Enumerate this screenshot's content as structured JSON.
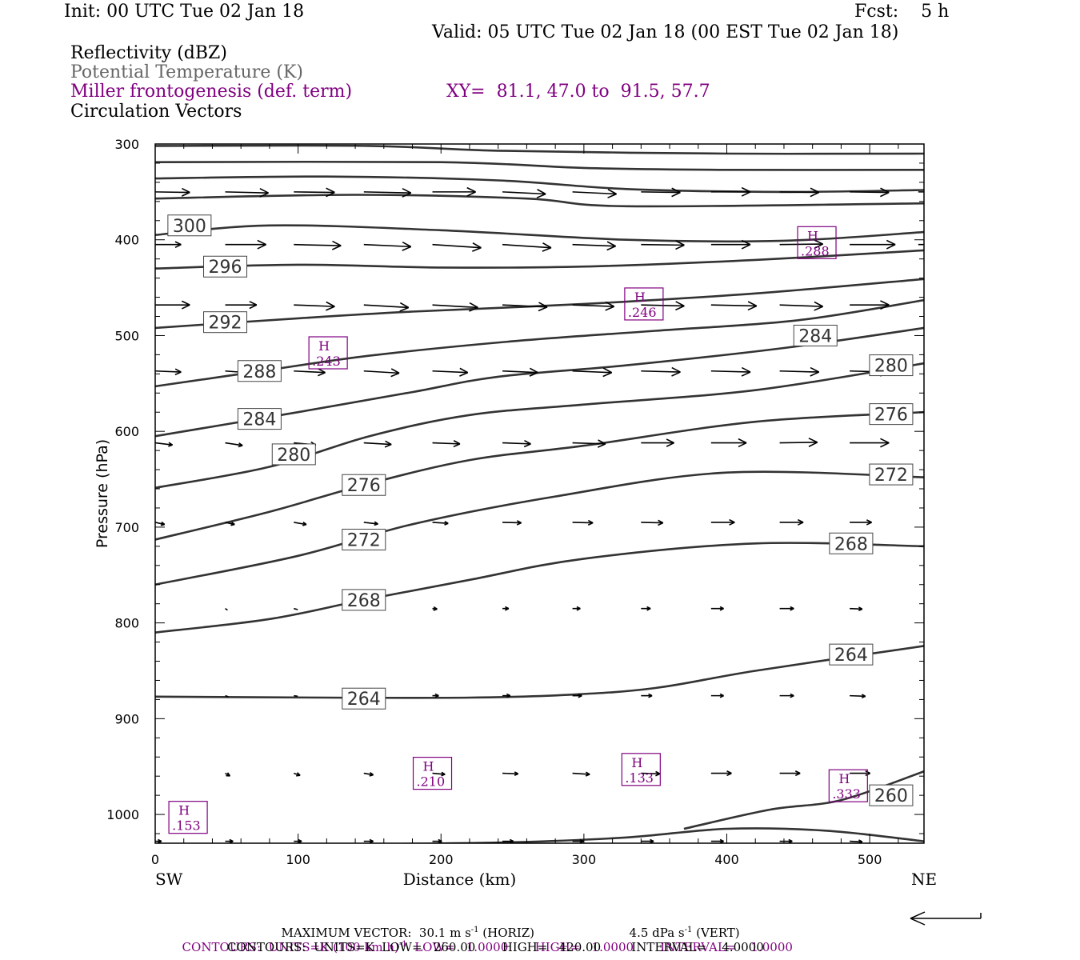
{
  "header": {
    "init": "Init: 00 UTC Tue 02 Jan 18",
    "fcst": "Fcst:    5 h",
    "valid": "Valid: 05 UTC Tue 02 Jan 18 (00 EST Tue 02 Jan 18)"
  },
  "fields": {
    "reflectivity": "Reflectivity (dBZ)",
    "theta": "Potential Temperature (K)",
    "frontogenesis": "Miller frontogenesis (def. term)",
    "xy": "XY=  81.1, 47.0 to  91.5, 57.7",
    "vectors": "Circulation Vectors"
  },
  "colors": {
    "purple": "#800080",
    "gray": "#666666",
    "line": "#333333",
    "axis": "#000000"
  },
  "footer": {
    "max_vector_prefix": "MAXIMUM VECTOR:  30.1 m s",
    "max_vector_exp": "-1",
    "max_vector_mid": " (HORIZ)",
    "max_vector_vert": "4.5 dPa s",
    "max_vector_vert_exp": "-1",
    "max_vector_vert_suffix": " (VERT)",
    "contours1_a": "CONTOURS:  UNITS=K (100 km h)",
    "contours1_exp": "-1",
    "contours1_b": "  LOW=   1.0000       HIGH=   1.0000       INTERVAL=    1.0000",
    "contours2": "CONTOURS:  UNITS=K  LOW=   260.00       HIGH=   420.00        INTERVAL=    4.0000"
  },
  "chart_data": {
    "type": "cross-section",
    "xlabel": "Distance (km)",
    "ylabel": "Pressure (hPa)",
    "xlim": [
      0,
      538
    ],
    "ylim": [
      1030,
      300
    ],
    "x_ticks": [
      0,
      100,
      200,
      300,
      400,
      500
    ],
    "y_ticks": [
      300,
      400,
      500,
      600,
      700,
      800,
      900,
      1000
    ],
    "left_end_label": "SW",
    "right_end_label": "NE",
    "theta_contours": [
      {
        "points": [
          [
            0,
            302
          ],
          [
            150,
            302
          ],
          [
            240,
            307
          ],
          [
            400,
            310
          ],
          [
            538,
            310
          ]
        ]
      },
      {
        "points": [
          [
            0,
            319
          ],
          [
            200,
            319
          ],
          [
            300,
            325
          ],
          [
            400,
            327
          ],
          [
            538,
            327
          ]
        ]
      },
      {
        "points": [
          [
            0,
            336
          ],
          [
            120,
            334
          ],
          [
            240,
            338
          ],
          [
            330,
            347
          ],
          [
            440,
            350
          ],
          [
            538,
            348
          ]
        ]
      },
      {
        "points": [
          [
            0,
            357
          ],
          [
            140,
            353
          ],
          [
            260,
            357
          ],
          [
            330,
            365
          ],
          [
            538,
            362
          ]
        ]
      },
      {
        "value": 300,
        "label_at": [
          24,
          385
        ],
        "points": [
          [
            0,
            395
          ],
          [
            80,
            385
          ],
          [
            200,
            390
          ],
          [
            330,
            400
          ],
          [
            440,
            401
          ],
          [
            538,
            392
          ]
        ]
      },
      {
        "value": 296,
        "label_at": [
          49,
          428
        ],
        "points": [
          [
            0,
            430
          ],
          [
            100,
            426
          ],
          [
            200,
            429
          ],
          [
            300,
            428
          ],
          [
            420,
            421
          ],
          [
            538,
            411
          ]
        ]
      },
      {
        "value": 292,
        "label_at": [
          49,
          486
        ],
        "points": [
          [
            0,
            492
          ],
          [
            100,
            482
          ],
          [
            180,
            475
          ],
          [
            300,
            467
          ],
          [
            420,
            456
          ],
          [
            538,
            441
          ]
        ]
      },
      {
        "value": 288,
        "label_at": [
          73,
          537
        ],
        "points": [
          [
            0,
            553
          ],
          [
            70,
            538
          ],
          [
            150,
            521
          ],
          [
            250,
            506
          ],
          [
            350,
            495
          ],
          [
            450,
            484
          ],
          [
            538,
            463
          ]
        ]
      },
      {
        "value": 284,
        "label_at": [
          73,
          587
        ],
        "labels": [
          [
            73,
            587
          ],
          [
            462,
            500
          ]
        ],
        "points": [
          [
            0,
            605
          ],
          [
            100,
            580
          ],
          [
            180,
            559
          ],
          [
            240,
            543
          ],
          [
            330,
            531
          ],
          [
            440,
            513
          ],
          [
            538,
            492
          ]
        ]
      },
      {
        "value": 280,
        "label_at": [
          97,
          624
        ],
        "labels": [
          [
            97,
            624
          ],
          [
            515,
            531
          ]
        ],
        "points": [
          [
            0,
            659
          ],
          [
            80,
            637
          ],
          [
            150,
            605
          ],
          [
            220,
            583
          ],
          [
            300,
            572
          ],
          [
            420,
            557
          ],
          [
            538,
            529
          ]
        ]
      },
      {
        "value": 276,
        "label_at": [
          146,
          656
        ],
        "labels": [
          [
            146,
            656
          ],
          [
            515,
            582
          ]
        ],
        "points": [
          [
            0,
            713
          ],
          [
            80,
            684
          ],
          [
            146,
            656
          ],
          [
            220,
            630
          ],
          [
            300,
            615
          ],
          [
            420,
            590
          ],
          [
            538,
            580
          ]
        ]
      },
      {
        "value": 272,
        "label_at": [
          146,
          713
        ],
        "labels": [
          [
            146,
            713
          ],
          [
            515,
            645
          ]
        ],
        "points": [
          [
            0,
            760
          ],
          [
            100,
            730
          ],
          [
            180,
            697
          ],
          [
            280,
            668
          ],
          [
            400,
            643
          ],
          [
            538,
            648
          ]
        ]
      },
      {
        "value": 268,
        "label_at": [
          146,
          776
        ],
        "labels": [
          [
            146,
            776
          ],
          [
            487,
            717
          ]
        ],
        "points": [
          [
            0,
            810
          ],
          [
            80,
            796
          ],
          [
            146,
            776
          ],
          [
            220,
            755
          ],
          [
            300,
            733
          ],
          [
            420,
            717
          ],
          [
            538,
            720
          ]
        ]
      },
      {
        "value": 264,
        "label_at": [
          146,
          879
        ],
        "labels": [
          [
            146,
            879
          ],
          [
            487,
            833
          ]
        ],
        "points": [
          [
            0,
            877
          ],
          [
            120,
            878
          ],
          [
            220,
            878
          ],
          [
            290,
            875
          ],
          [
            350,
            868
          ],
          [
            420,
            850
          ],
          [
            538,
            824
          ]
        ]
      },
      {
        "value": 260,
        "label_at": [
          515,
          980
        ],
        "points": [
          [
            370,
            1015
          ],
          [
            430,
            995
          ],
          [
            480,
            985
          ],
          [
            538,
            955
          ]
        ]
      },
      {
        "points": [
          [
            0,
            1033
          ],
          [
            150,
            1031
          ],
          [
            250,
            1029
          ],
          [
            330,
            1024
          ],
          [
            400,
            1015
          ],
          [
            470,
            1017
          ],
          [
            538,
            1028
          ]
        ]
      }
    ],
    "frontogenesis_maxima": [
      {
        "label": "H",
        "value": ".288",
        "x": 463,
        "p": 403
      },
      {
        "label": "H",
        "value": ".246",
        "x": 342,
        "p": 467
      },
      {
        "label": "H",
        "value": ".243",
        "x": 121,
        "p": 518
      },
      {
        "label": "H",
        "value": ".210",
        "x": 194,
        "p": 957
      },
      {
        "label": "H",
        "value": ".133",
        "x": 340,
        "p": 953
      },
      {
        "label": "H",
        "value": ".333",
        "x": 485,
        "p": 970
      },
      {
        "label": "H",
        "value": ".153",
        "x": 23,
        "p": 1003
      }
    ],
    "vector_rows": [
      {
        "p": 350,
        "vectors": [
          [
            0,
            44,
            -1
          ],
          [
            49,
            55,
            -2
          ],
          [
            97,
            52,
            -1
          ],
          [
            146,
            60,
            -2
          ],
          [
            194,
            55,
            0
          ],
          [
            243,
            55,
            -4
          ],
          [
            292,
            56,
            -4
          ],
          [
            340,
            50,
            -1
          ],
          [
            389,
            50,
            0
          ],
          [
            437,
            50,
            -1
          ],
          [
            486,
            50,
            -1
          ],
          [
            534,
            40,
            0
          ]
        ]
      },
      {
        "p": 405,
        "vectors": [
          [
            0,
            33,
            0
          ],
          [
            49,
            52,
            0
          ],
          [
            97,
            60,
            -2
          ],
          [
            146,
            60,
            -4
          ],
          [
            194,
            62,
            -6
          ],
          [
            243,
            62,
            -6
          ],
          [
            292,
            55,
            -3
          ],
          [
            340,
            55,
            -1
          ],
          [
            389,
            50,
            0
          ],
          [
            437,
            55,
            1
          ],
          [
            486,
            58,
            0
          ],
          [
            534,
            40,
            0
          ]
        ]
      },
      {
        "p": 468,
        "vectors": [
          [
            0,
            44,
            0
          ],
          [
            49,
            40,
            0
          ],
          [
            97,
            52,
            -3
          ],
          [
            146,
            57,
            -5
          ],
          [
            194,
            58,
            -5
          ],
          [
            243,
            57,
            -4
          ],
          [
            292,
            53,
            -3
          ],
          [
            340,
            55,
            -2
          ],
          [
            389,
            58,
            -2
          ],
          [
            437,
            55,
            -3
          ],
          [
            486,
            50,
            0
          ],
          [
            534,
            0,
            0
          ]
        ]
      },
      {
        "p": 537,
        "vectors": [
          [
            0,
            33,
            -2
          ],
          [
            49,
            36,
            -4
          ],
          [
            97,
            40,
            -3
          ],
          [
            146,
            45,
            -4
          ],
          [
            194,
            45,
            -3
          ],
          [
            243,
            45,
            -3
          ],
          [
            292,
            50,
            -3
          ],
          [
            340,
            50,
            -2
          ],
          [
            389,
            50,
            -2
          ],
          [
            437,
            50,
            -2
          ],
          [
            486,
            50,
            -2
          ],
          [
            534,
            0,
            0
          ]
        ]
      },
      {
        "p": 612,
        "vectors": [
          [
            0,
            22,
            -4
          ],
          [
            49,
            22,
            -5
          ],
          [
            97,
            28,
            -4
          ],
          [
            146,
            35,
            -3
          ],
          [
            194,
            35,
            -2
          ],
          [
            243,
            36,
            -2
          ],
          [
            292,
            42,
            -2
          ],
          [
            340,
            42,
            0
          ],
          [
            389,
            45,
            0
          ],
          [
            437,
            48,
            1
          ],
          [
            486,
            50,
            0
          ],
          [
            534,
            0,
            0
          ]
        ]
      },
      {
        "p": 695,
        "vectors": [
          [
            0,
            12,
            -4
          ],
          [
            49,
            12,
            -4
          ],
          [
            97,
            16,
            -4
          ],
          [
            146,
            18,
            -3
          ],
          [
            194,
            20,
            -2
          ],
          [
            243,
            24,
            -1
          ],
          [
            292,
            26,
            -1
          ],
          [
            340,
            28,
            -1
          ],
          [
            389,
            30,
            0
          ],
          [
            437,
            30,
            0
          ],
          [
            486,
            28,
            0
          ],
          [
            534,
            0,
            0
          ]
        ]
      },
      {
        "p": 785,
        "vectors": [
          [
            49,
            3,
            -3
          ],
          [
            97,
            5,
            -2
          ],
          [
            146,
            5,
            -2
          ],
          [
            194,
            6,
            -1
          ],
          [
            243,
            8,
            0
          ],
          [
            292,
            10,
            0
          ],
          [
            340,
            12,
            0
          ],
          [
            389,
            16,
            0
          ],
          [
            437,
            18,
            0
          ],
          [
            486,
            16,
            -1
          ]
        ]
      },
      {
        "p": 876,
        "vectors": [
          [
            49,
            4,
            -2
          ],
          [
            97,
            5,
            -1
          ],
          [
            146,
            6,
            0
          ],
          [
            194,
            8,
            0
          ],
          [
            243,
            10,
            0
          ],
          [
            292,
            12,
            0
          ],
          [
            340,
            14,
            0
          ],
          [
            389,
            16,
            0
          ],
          [
            437,
            18,
            0
          ],
          [
            486,
            20,
            -1
          ]
        ]
      },
      {
        "p": 957,
        "vectors": [
          [
            49,
            6,
            -5
          ],
          [
            97,
            8,
            -4
          ],
          [
            146,
            12,
            -3
          ],
          [
            194,
            16,
            -2
          ],
          [
            243,
            20,
            -1
          ],
          [
            292,
            22,
            -2
          ],
          [
            340,
            24,
            -1
          ],
          [
            389,
            26,
            0
          ],
          [
            437,
            26,
            0
          ],
          [
            486,
            26,
            0
          ]
        ]
      },
      {
        "p": 1028,
        "vectors": [
          [
            0,
            8,
            0
          ],
          [
            49,
            10,
            0
          ],
          [
            97,
            10,
            0
          ],
          [
            146,
            12,
            0
          ],
          [
            194,
            12,
            0
          ],
          [
            243,
            14,
            0
          ],
          [
            292,
            14,
            0
          ],
          [
            340,
            16,
            0
          ],
          [
            389,
            16,
            0
          ],
          [
            437,
            16,
            0
          ],
          [
            486,
            16,
            -1
          ]
        ]
      }
    ]
  }
}
